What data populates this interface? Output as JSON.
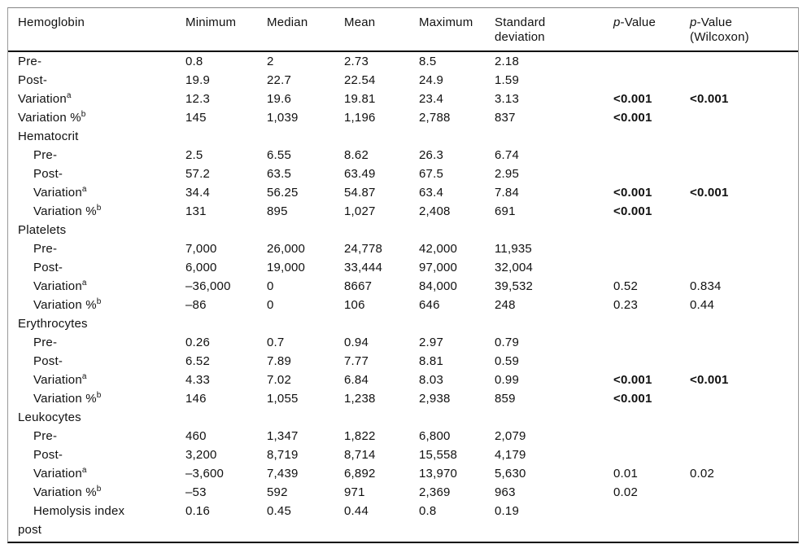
{
  "colors": {
    "text": "#111111",
    "border_light": "#9a9a9a",
    "border_dark": "#0a0a0a",
    "background": "#ffffff"
  },
  "table": {
    "headers": [
      {
        "line1": "Hemoglobin"
      },
      {
        "line1": "Minimum"
      },
      {
        "line1": "Median"
      },
      {
        "line1": "Mean"
      },
      {
        "line1": "Maximum"
      },
      {
        "line1": "Standard",
        "line2": "deviation"
      },
      {
        "prefix_italic": "p",
        "rest": "-Value"
      },
      {
        "prefix_italic": "p",
        "rest": "-Value",
        "line2": "(Wilcoxon)"
      }
    ],
    "rows": [
      {
        "label": "Pre-",
        "indent": false,
        "values": [
          "0.8",
          "2",
          "2.73",
          "8.5",
          "2.18",
          "",
          ""
        ]
      },
      {
        "label": "Post-",
        "indent": false,
        "values": [
          "19.9",
          "22.7",
          "22.54",
          "24.9",
          "1.59",
          "",
          ""
        ]
      },
      {
        "label": "Variation",
        "sup": "a",
        "indent": false,
        "values": [
          "12.3",
          "19.6",
          "19.81",
          "23.4",
          "3.13",
          "<0.001",
          "<0.001"
        ]
      },
      {
        "label": "Variation %",
        "sup": "b",
        "indent": false,
        "values": [
          "145",
          "1,039",
          "1,196",
          "2,788",
          "837",
          "<0.001",
          ""
        ]
      },
      {
        "label": "Hematocrit",
        "section": true,
        "values": []
      },
      {
        "label": "Pre-",
        "indent": true,
        "values": [
          "2.5",
          "6.55",
          "8.62",
          "26.3",
          "6.74",
          "",
          ""
        ]
      },
      {
        "label": "Post-",
        "indent": true,
        "values": [
          "57.2",
          "63.5",
          "63.49",
          "67.5",
          "2.95",
          "",
          ""
        ]
      },
      {
        "label": "Variation",
        "sup": "a",
        "indent": true,
        "values": [
          "34.4",
          "56.25",
          "54.87",
          "63.4",
          "7.84",
          "<0.001",
          "<0.001"
        ]
      },
      {
        "label": "Variation %",
        "sup": "b",
        "indent": true,
        "values": [
          "131",
          "895",
          "1,027",
          "2,408",
          "691",
          "<0.001",
          ""
        ]
      },
      {
        "label": "Platelets",
        "section": true,
        "values": []
      },
      {
        "label": "Pre-",
        "indent": true,
        "values": [
          "7,000",
          "26,000",
          "24,778",
          "42,000",
          "11,935",
          "",
          ""
        ]
      },
      {
        "label": "Post-",
        "indent": true,
        "values": [
          "6,000",
          "19,000",
          "33,444",
          "97,000",
          "32,004",
          "",
          ""
        ]
      },
      {
        "label": "Variation",
        "sup": "a",
        "indent": true,
        "values": [
          "–36,000",
          "0",
          "8667",
          "84,000",
          "39,532",
          "0.52",
          "0.834"
        ]
      },
      {
        "label": "Variation %",
        "sup": "b",
        "indent": true,
        "values": [
          "–86",
          "0",
          "106",
          "646",
          "248",
          "0.23",
          "0.44"
        ]
      },
      {
        "label": "Erythrocytes",
        "section": true,
        "values": []
      },
      {
        "label": "Pre-",
        "indent": true,
        "values": [
          "0.26",
          "0.7",
          "0.94",
          "2.97",
          "0.79",
          "",
          ""
        ]
      },
      {
        "label": "Post-",
        "indent": true,
        "values": [
          "6.52",
          "7.89",
          "7.77",
          "8.81",
          "0.59",
          "",
          ""
        ]
      },
      {
        "label": "Variation",
        "sup": "a",
        "indent": true,
        "values": [
          "4.33",
          "7.02",
          "6.84",
          "8.03",
          "0.99",
          "<0.001",
          "<0.001"
        ]
      },
      {
        "label": "Variation %",
        "sup": "b",
        "indent": true,
        "values": [
          "146",
          "1,055",
          "1,238",
          "2,938",
          "859",
          "<0.001",
          ""
        ]
      },
      {
        "label": "Leukocytes",
        "section": true,
        "values": []
      },
      {
        "label": "Pre-",
        "indent": true,
        "values": [
          "460",
          "1,347",
          "1,822",
          "6,800",
          "2,079",
          "",
          ""
        ]
      },
      {
        "label": "Post-",
        "indent": true,
        "values": [
          "3,200",
          "8,719",
          "8,714",
          "15,558",
          "4,179",
          "",
          ""
        ]
      },
      {
        "label": "Variation",
        "sup": "a",
        "indent": true,
        "values": [
          "–3,600",
          "7,439",
          "6,892",
          "13,970",
          "5,630",
          "0.01",
          "0.02"
        ]
      },
      {
        "label": "Variation %",
        "sup": "b",
        "indent": true,
        "values": [
          "–53",
          "592",
          "971",
          "2,369",
          "963",
          "0.02",
          ""
        ]
      },
      {
        "label": "Hemolysis index",
        "indent": true,
        "values": [
          "0.16",
          "0.45",
          "0.44",
          "0.8",
          "0.19",
          "",
          ""
        ]
      },
      {
        "label": "post",
        "indent": false,
        "continuation": true,
        "values": []
      }
    ]
  }
}
